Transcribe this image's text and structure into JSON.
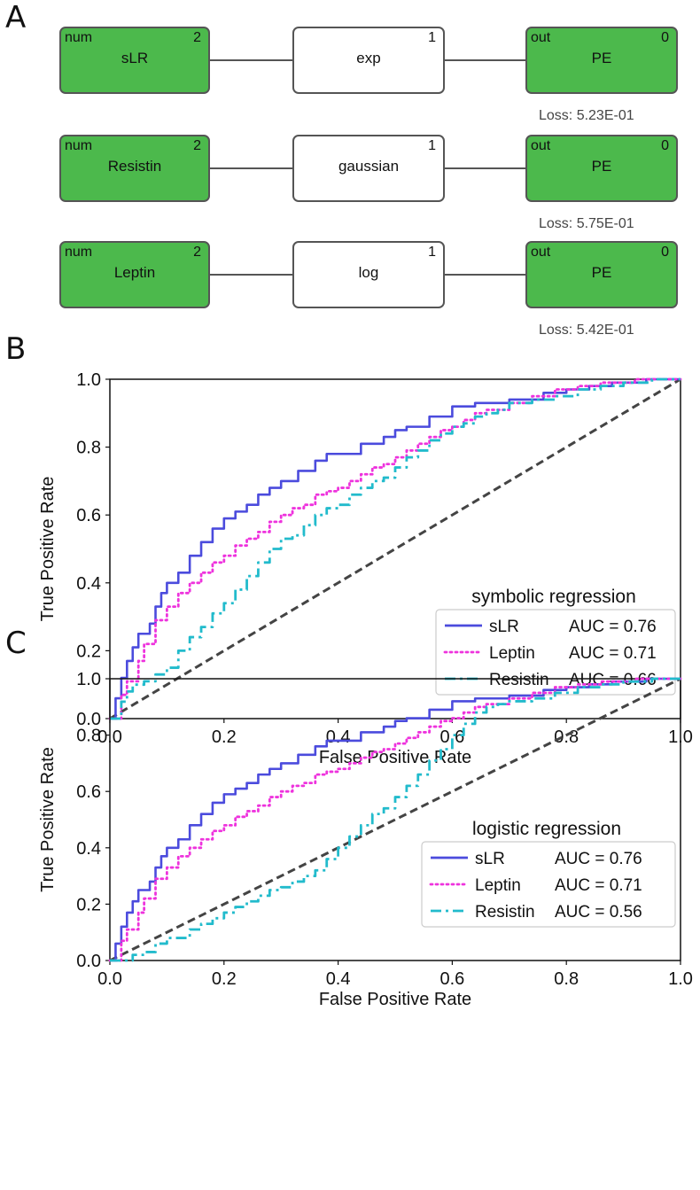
{
  "panels": {
    "a": "A",
    "b": "B",
    "c": "C"
  },
  "graphs": [
    {
      "input": {
        "type": "num",
        "name": "sLR",
        "index": "2"
      },
      "func": {
        "name": "exp",
        "index": "1"
      },
      "output": {
        "type": "out",
        "name": "PE",
        "index": "0"
      },
      "loss": "Loss: 5.23E-01"
    },
    {
      "input": {
        "type": "num",
        "name": "Resistin",
        "index": "2"
      },
      "func": {
        "name": "gaussian",
        "index": "1"
      },
      "output": {
        "type": "out",
        "name": "PE",
        "index": "0"
      },
      "loss": "Loss: 5.75E-01"
    },
    {
      "input": {
        "type": "num",
        "name": "Leptin",
        "index": "2"
      },
      "func": {
        "name": "log",
        "index": "1"
      },
      "output": {
        "type": "out",
        "name": "PE",
        "index": "0"
      },
      "loss": "Loss: 5.42E-01"
    }
  ],
  "colors": {
    "green": "#4cb94c",
    "sLR": "#4b4bdd",
    "Leptin": "#ee33dd",
    "Resistin": "#22bbcc",
    "diag": "#444444"
  },
  "chart_data": [
    {
      "type": "line",
      "xlabel": "False Positive Rate",
      "ylabel": "True Positive Rate",
      "xlim": [
        0,
        1
      ],
      "ylim": [
        0,
        1
      ],
      "xticks": [
        "0.0",
        "0.2",
        "0.4",
        "0.6",
        "0.8",
        "1.0"
      ],
      "yticks": [
        "0.0",
        "0.2",
        "0.4",
        "0.6",
        "0.8",
        "1.0"
      ],
      "legend_title": "symbolic regression",
      "legend_position": "lower-right",
      "series": [
        {
          "name": "sLR",
          "auc": "AUC = 0.76",
          "style": "solid",
          "x": [
            0,
            0.01,
            0.02,
            0.03,
            0.04,
            0.05,
            0.07,
            0.08,
            0.09,
            0.1,
            0.12,
            0.14,
            0.16,
            0.18,
            0.2,
            0.22,
            0.24,
            0.26,
            0.28,
            0.3,
            0.33,
            0.36,
            0.38,
            0.42,
            0.44,
            0.48,
            0.5,
            0.52,
            0.56,
            0.6,
            0.64,
            0.7,
            0.76,
            0.8,
            0.84,
            0.88,
            0.94,
            1.0
          ],
          "y": [
            0,
            0.06,
            0.12,
            0.17,
            0.21,
            0.25,
            0.28,
            0.33,
            0.37,
            0.4,
            0.43,
            0.48,
            0.52,
            0.56,
            0.59,
            0.61,
            0.63,
            0.66,
            0.68,
            0.7,
            0.73,
            0.76,
            0.78,
            0.78,
            0.81,
            0.83,
            0.85,
            0.86,
            0.89,
            0.92,
            0.93,
            0.94,
            0.96,
            0.97,
            0.98,
            0.99,
            1.0,
            1.0
          ]
        },
        {
          "name": "Leptin",
          "auc": "AUC = 0.71",
          "style": "dotted",
          "x": [
            0,
            0.02,
            0.03,
            0.05,
            0.06,
            0.08,
            0.1,
            0.12,
            0.14,
            0.16,
            0.18,
            0.2,
            0.22,
            0.24,
            0.26,
            0.28,
            0.3,
            0.32,
            0.34,
            0.36,
            0.38,
            0.4,
            0.42,
            0.44,
            0.46,
            0.48,
            0.5,
            0.52,
            0.54,
            0.56,
            0.58,
            0.6,
            0.62,
            0.64,
            0.66,
            0.7,
            0.74,
            0.78,
            0.82,
            0.86,
            0.92,
            1.0
          ],
          "y": [
            0,
            0.07,
            0.11,
            0.17,
            0.22,
            0.29,
            0.33,
            0.37,
            0.4,
            0.43,
            0.46,
            0.48,
            0.51,
            0.53,
            0.55,
            0.58,
            0.6,
            0.62,
            0.63,
            0.66,
            0.67,
            0.68,
            0.7,
            0.72,
            0.74,
            0.75,
            0.77,
            0.79,
            0.81,
            0.83,
            0.85,
            0.86,
            0.88,
            0.9,
            0.91,
            0.93,
            0.95,
            0.97,
            0.98,
            0.99,
            1.0,
            1.0
          ]
        },
        {
          "name": "Resistin",
          "auc": "AUC = 0.66",
          "style": "dashdot",
          "x": [
            0,
            0.02,
            0.03,
            0.04,
            0.06,
            0.08,
            0.1,
            0.12,
            0.14,
            0.16,
            0.18,
            0.2,
            0.22,
            0.24,
            0.26,
            0.28,
            0.3,
            0.32,
            0.34,
            0.36,
            0.38,
            0.4,
            0.42,
            0.44,
            0.46,
            0.48,
            0.5,
            0.52,
            0.54,
            0.56,
            0.58,
            0.6,
            0.62,
            0.64,
            0.66,
            0.68,
            0.7,
            0.74,
            0.78,
            0.82,
            0.86,
            0.9,
            0.95,
            1.0
          ],
          "y": [
            0,
            0.05,
            0.08,
            0.1,
            0.11,
            0.13,
            0.15,
            0.2,
            0.24,
            0.27,
            0.31,
            0.34,
            0.38,
            0.42,
            0.46,
            0.5,
            0.53,
            0.54,
            0.57,
            0.6,
            0.62,
            0.63,
            0.66,
            0.68,
            0.7,
            0.71,
            0.74,
            0.77,
            0.79,
            0.82,
            0.84,
            0.86,
            0.87,
            0.89,
            0.9,
            0.91,
            0.93,
            0.94,
            0.95,
            0.97,
            0.98,
            0.99,
            1.0,
            1.0
          ]
        }
      ]
    },
    {
      "type": "line",
      "xlabel": "False Positive Rate",
      "ylabel": "True Positive Rate",
      "xlim": [
        0,
        1
      ],
      "ylim": [
        0,
        1
      ],
      "xticks": [
        "0.0",
        "0.2",
        "0.4",
        "0.6",
        "0.8",
        "1.0"
      ],
      "yticks": [
        "0.0",
        "0.2",
        "0.4",
        "0.6",
        "0.8",
        "1.0"
      ],
      "legend_title": "logistic regression",
      "legend_position": "lower-right",
      "series": [
        {
          "name": "sLR",
          "auc": "AUC = 0.76",
          "style": "solid",
          "x": [
            0,
            0.01,
            0.02,
            0.03,
            0.04,
            0.05,
            0.07,
            0.08,
            0.09,
            0.1,
            0.12,
            0.14,
            0.16,
            0.18,
            0.2,
            0.22,
            0.24,
            0.26,
            0.28,
            0.3,
            0.33,
            0.36,
            0.38,
            0.42,
            0.44,
            0.48,
            0.5,
            0.52,
            0.56,
            0.6,
            0.64,
            0.7,
            0.76,
            0.8,
            0.84,
            0.88,
            0.94,
            1.0
          ],
          "y": [
            0,
            0.06,
            0.12,
            0.17,
            0.21,
            0.25,
            0.28,
            0.33,
            0.37,
            0.4,
            0.43,
            0.48,
            0.52,
            0.56,
            0.59,
            0.61,
            0.63,
            0.66,
            0.68,
            0.7,
            0.73,
            0.76,
            0.78,
            0.78,
            0.81,
            0.83,
            0.85,
            0.86,
            0.89,
            0.92,
            0.93,
            0.94,
            0.96,
            0.97,
            0.98,
            0.99,
            1.0,
            1.0
          ]
        },
        {
          "name": "Leptin",
          "auc": "AUC = 0.71",
          "style": "dotted",
          "x": [
            0,
            0.02,
            0.03,
            0.05,
            0.06,
            0.08,
            0.1,
            0.12,
            0.14,
            0.16,
            0.18,
            0.2,
            0.22,
            0.24,
            0.26,
            0.28,
            0.3,
            0.32,
            0.34,
            0.36,
            0.38,
            0.4,
            0.42,
            0.44,
            0.46,
            0.48,
            0.5,
            0.52,
            0.54,
            0.56,
            0.58,
            0.6,
            0.62,
            0.64,
            0.66,
            0.7,
            0.74,
            0.78,
            0.82,
            0.86,
            0.92,
            1.0
          ],
          "y": [
            0,
            0.07,
            0.11,
            0.17,
            0.22,
            0.29,
            0.33,
            0.37,
            0.4,
            0.43,
            0.46,
            0.48,
            0.51,
            0.53,
            0.55,
            0.58,
            0.6,
            0.62,
            0.63,
            0.66,
            0.67,
            0.68,
            0.7,
            0.72,
            0.74,
            0.75,
            0.77,
            0.79,
            0.81,
            0.83,
            0.85,
            0.86,
            0.88,
            0.9,
            0.91,
            0.93,
            0.95,
            0.97,
            0.98,
            0.99,
            1.0,
            1.0
          ]
        },
        {
          "name": "Resistin",
          "auc": "AUC = 0.56",
          "style": "dashdot",
          "x": [
            0,
            0.02,
            0.04,
            0.06,
            0.08,
            0.1,
            0.14,
            0.16,
            0.18,
            0.2,
            0.22,
            0.24,
            0.26,
            0.28,
            0.3,
            0.32,
            0.34,
            0.36,
            0.38,
            0.4,
            0.42,
            0.44,
            0.46,
            0.48,
            0.5,
            0.52,
            0.54,
            0.56,
            0.58,
            0.6,
            0.62,
            0.64,
            0.66,
            0.68,
            0.7,
            0.74,
            0.78,
            0.82,
            0.86,
            0.9,
            0.95,
            1.0
          ],
          "y": [
            0,
            0.0,
            0.02,
            0.03,
            0.06,
            0.08,
            0.11,
            0.13,
            0.15,
            0.17,
            0.19,
            0.21,
            0.23,
            0.25,
            0.26,
            0.28,
            0.3,
            0.32,
            0.36,
            0.4,
            0.44,
            0.48,
            0.52,
            0.54,
            0.58,
            0.62,
            0.66,
            0.71,
            0.75,
            0.8,
            0.84,
            0.88,
            0.9,
            0.91,
            0.92,
            0.93,
            0.95,
            0.97,
            0.98,
            0.99,
            1.0,
            1.0
          ]
        }
      ]
    }
  ]
}
